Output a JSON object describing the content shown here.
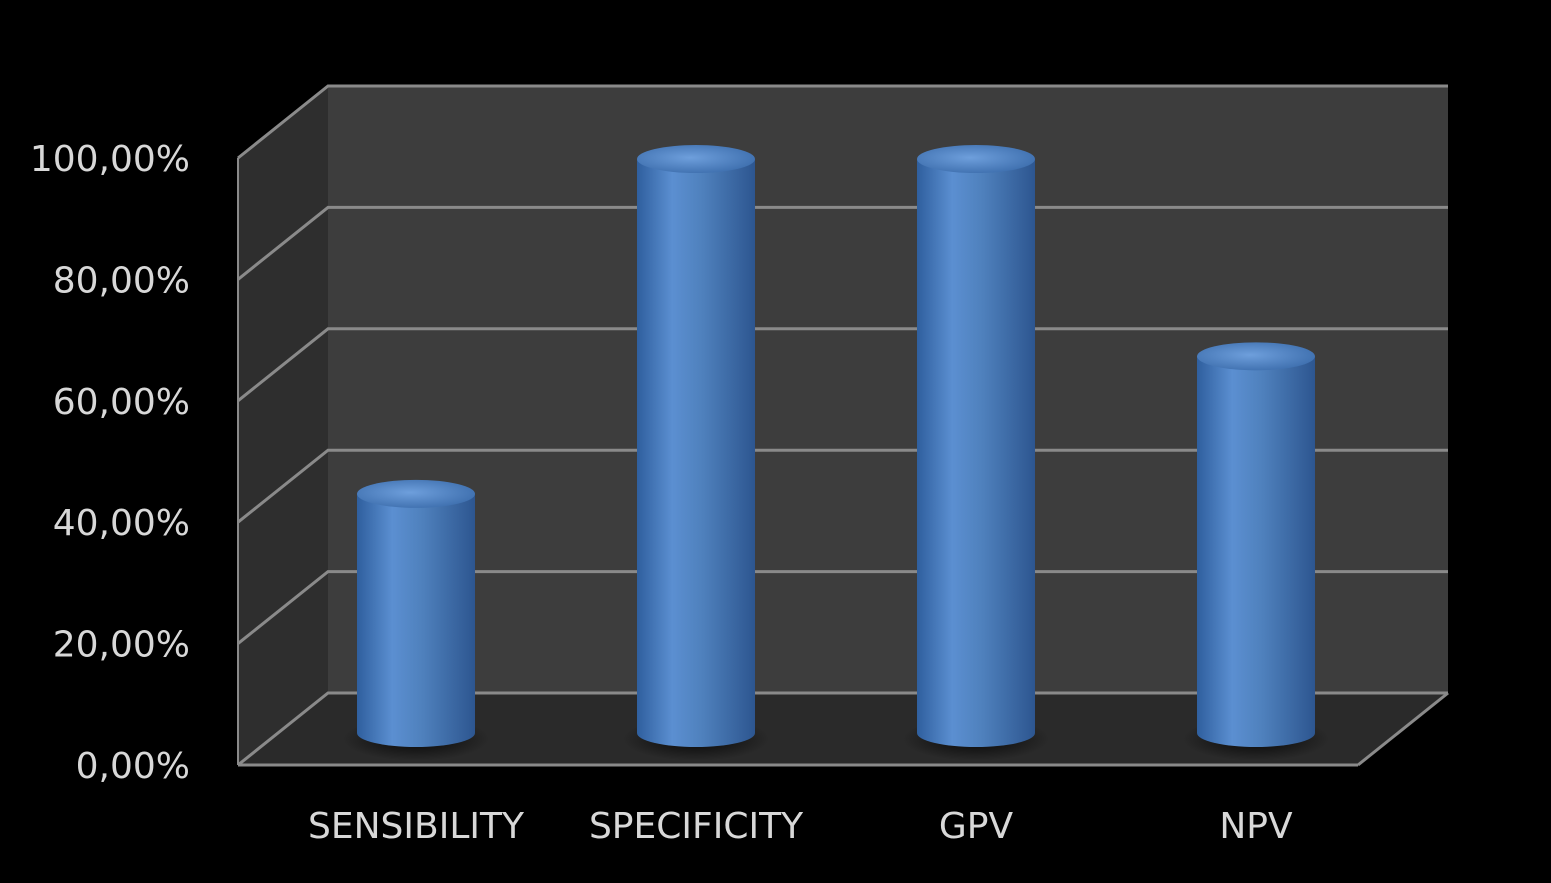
{
  "chart_data": {
    "type": "bar",
    "style": "3d-cylinder",
    "categories": [
      "SENSIBILITY",
      "SPECIFICITY",
      "GPV",
      "NPV"
    ],
    "values": [
      40,
      96,
      96,
      63
    ],
    "value_unit": "%",
    "title": "",
    "xlabel": "",
    "ylabel": "",
    "ylim": [
      0,
      100
    ],
    "yticks": [
      0,
      20,
      40,
      60,
      80,
      100
    ],
    "ytick_labels": [
      "0,00%",
      "20,00%",
      "40,00%",
      "60,00%",
      "80,00%",
      "100,00%"
    ],
    "grid": true,
    "legend": "none",
    "colors": {
      "background": "#000000",
      "back_wall": "#3d3d3d",
      "side_wall": "#2e2e2e",
      "floor": "#2a2a2a",
      "gridline": "#8a8a8a",
      "bar": "#4f81bd",
      "text": "#d8d8d8"
    }
  }
}
